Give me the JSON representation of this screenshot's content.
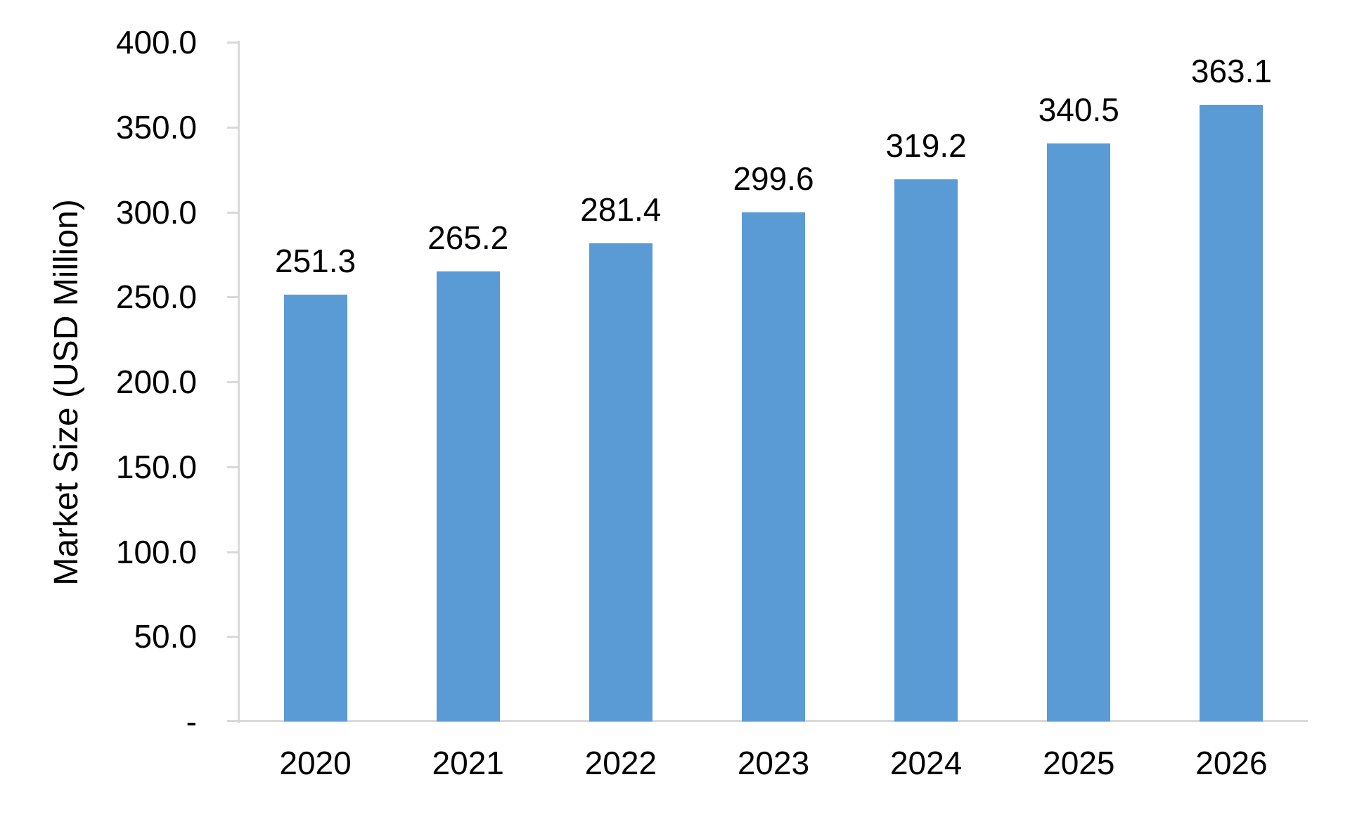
{
  "chart_data": {
    "type": "bar",
    "title": "",
    "categories": [
      "2020",
      "2021",
      "2022",
      "2023",
      "2024",
      "2025",
      "2026"
    ],
    "values": [
      251.3,
      265.2,
      281.4,
      299.6,
      319.2,
      340.5,
      363.1
    ],
    "data_labels": [
      "251.3",
      "265.2",
      "281.4",
      "299.6",
      "319.2",
      "340.5",
      "363.1"
    ],
    "xlabel": "",
    "ylabel": "Market Size (USD Million)",
    "ylim": [
      0,
      400
    ],
    "ytick_interval": 50,
    "yticks": [
      {
        "value": 400,
        "label": "400.0"
      },
      {
        "value": 350,
        "label": "350.0"
      },
      {
        "value": 300,
        "label": "300.0"
      },
      {
        "value": 250,
        "label": "250.0"
      },
      {
        "value": 200,
        "label": "200.0"
      },
      {
        "value": 150,
        "label": "150.0"
      },
      {
        "value": 100,
        "label": "100.0"
      },
      {
        "value": 50,
        "label": "50.0"
      },
      {
        "value": 0,
        "label": "-"
      }
    ],
    "grid": "off",
    "legend": "none",
    "colors": {
      "bar": "#5B9BD5",
      "axis": "#D9D9D9",
      "text": "#000000",
      "background": "#FFFFFF"
    }
  }
}
